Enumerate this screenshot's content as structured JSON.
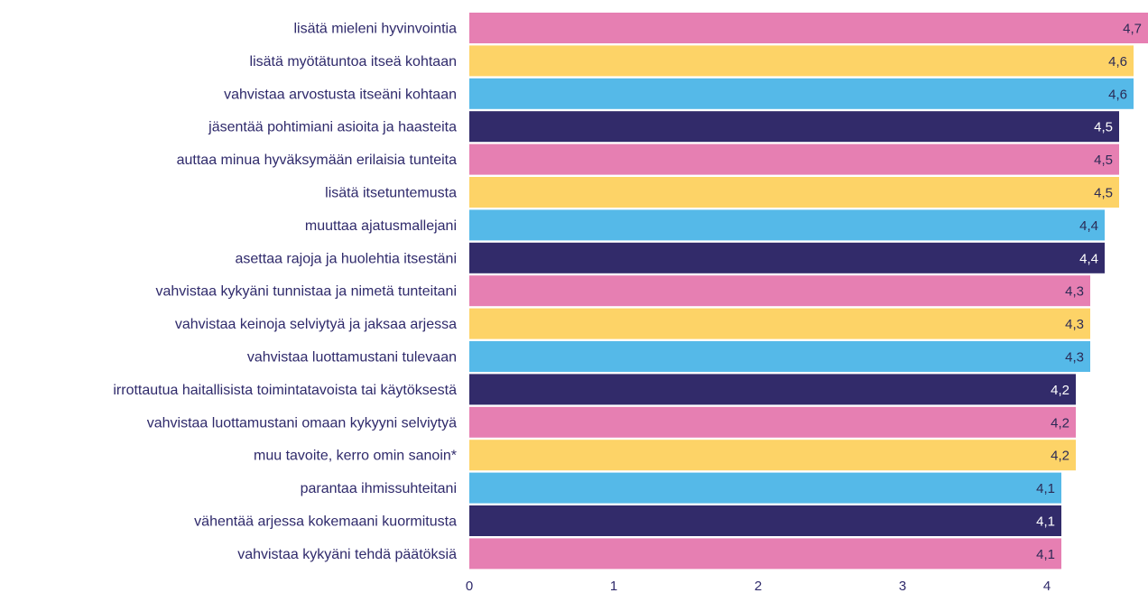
{
  "chart_data": {
    "type": "bar",
    "orientation": "horizontal",
    "categories": [
      "lisätä mieleni hyvinvointia",
      "lisätä myötätuntoa itseä kohtaan",
      "vahvistaa arvostusta itseäni kohtaan",
      "jäsentää pohtimiani asioita ja haasteita",
      "auttaa minua hyväksymään erilaisia tunteita",
      "lisätä itsetuntemusta",
      "muuttaa ajatusmallejani",
      "asettaa rajoja ja huolehtia itsestäni",
      "vahvistaa kykyäni tunnistaa ja nimetä tunteitani",
      "vahvistaa keinoja selviytyä ja jaksaa arjessa",
      "vahvistaa luottamustani tulevaan",
      "irrottautua haitallisista toimintatavoista tai käytöksestä",
      "vahvistaa luottamustani omaan kykyyni selviytyä",
      "muu tavoite, kerro omin sanoin*",
      "parantaa ihmissuhteitani",
      "vähentää arjessa kokemaani kuormitusta",
      "vahvistaa kykyäni tehdä päätöksiä"
    ],
    "values": [
      4.7,
      4.6,
      4.6,
      4.5,
      4.5,
      4.5,
      4.4,
      4.4,
      4.3,
      4.3,
      4.3,
      4.2,
      4.2,
      4.2,
      4.1,
      4.1,
      4.1
    ],
    "value_labels": [
      "4,7",
      "4,6",
      "4,6",
      "4,5",
      "4,5",
      "4,5",
      "4,4",
      "4,4",
      "4,3",
      "4,3",
      "4,3",
      "4,2",
      "4,2",
      "4,2",
      "4,1",
      "4,1",
      "4,1"
    ],
    "xlim": [
      0,
      4.7
    ],
    "xticks": [
      0,
      1,
      2,
      3,
      4
    ],
    "xtick_labels": [
      "0",
      "1",
      "2",
      "3",
      "4"
    ],
    "grid": false,
    "bar_colors": [
      "#e67fb2",
      "#fdd367",
      "#55b9e8",
      "#322b6a"
    ],
    "value_label_colors": {
      "#e67fb2": "#2b2a55",
      "#fdd367": "#2b2a55",
      "#55b9e8": "#2b2a55",
      "#322b6a": "#ffffff"
    },
    "label_color": "#2f2a6b"
  }
}
